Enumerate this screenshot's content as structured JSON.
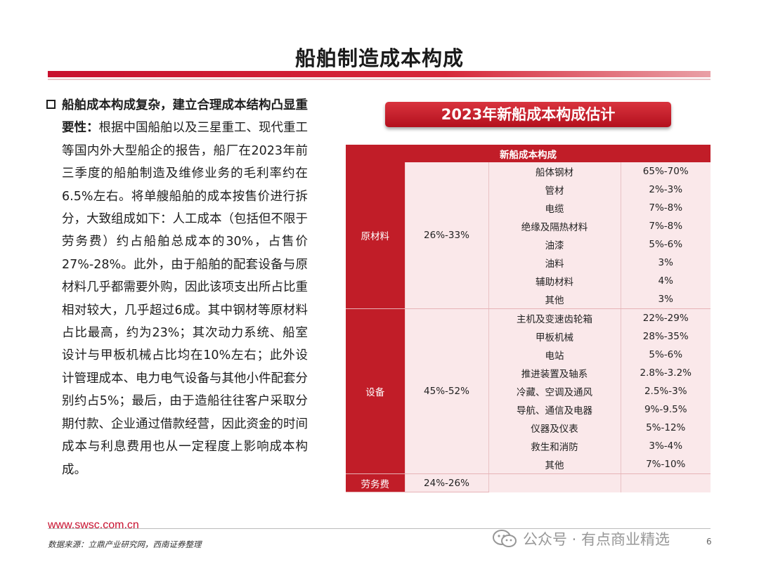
{
  "slide": {
    "title": "船舶制造成本构成",
    "page_number": "6"
  },
  "left": {
    "lead": "船舶成本构成复杂，建立合理成本结构凸显重要性：",
    "body": "根据中国船舶以及三星重工、现代重工等国内外大型船企的报告，船厂在2023年前三季度的船舶制造及维修业务的毛利率约在6.5%左右。将单艘船舶的成本按售价进行拆分，大致组成如下：人工成本（包括但不限于劳务费）约占船舶总成本的30%，占售价27%-28%。此外，由于船舶的配套设备与原材料几乎都需要外购，因此该项支出所占比重相对较大，几乎超过6成。其中钢材等原材料占比最高，约为23%；其次动力系统、船室设计与甲板机械占比均在10%左右；此外设计管理成本、电力电气设备与其他小件配套分别约占5%；最后，由于造船往往客户采取分期付款、企业通过借款经营，因此资金的时间成本与利息费用也从一定程度上影响成本构成。"
  },
  "chart": {
    "title": "2023年新船成本构成估计",
    "header": "新船成本构成",
    "groups": [
      {
        "category": "原材料",
        "share": "26%-33%",
        "items": [
          {
            "name": "船体钢材",
            "pct": "65%-70%"
          },
          {
            "name": "管材",
            "pct": "2%-3%"
          },
          {
            "name": "电缆",
            "pct": "7%-8%"
          },
          {
            "name": "绝缘及隔热材料",
            "pct": "7%-8%"
          },
          {
            "name": "油漆",
            "pct": "5%-6%"
          },
          {
            "name": "油料",
            "pct": "3%"
          },
          {
            "name": "辅助材料",
            "pct": "4%"
          },
          {
            "name": "其他",
            "pct": "3%"
          }
        ]
      },
      {
        "category": "设备",
        "share": "45%-52%",
        "items": [
          {
            "name": "主机及变速齿轮箱",
            "pct": "22%-29%"
          },
          {
            "name": "甲板机械",
            "pct": "28%-35%"
          },
          {
            "name": "电站",
            "pct": "5%-6%"
          },
          {
            "name": "推进装置及轴系",
            "pct": "2.8%-3.2%"
          },
          {
            "name": "冷藏、空调及通风",
            "pct": "2.5%-3%"
          },
          {
            "name": "导航、通信及电器",
            "pct": "9%-9.5%"
          },
          {
            "name": "仪器及仪表",
            "pct": "5%-12%"
          },
          {
            "name": "救生和消防",
            "pct": "3%-4%"
          },
          {
            "name": "其他",
            "pct": "7%-10%"
          }
        ]
      }
    ],
    "labor": {
      "category": "劳务费",
      "share": "24%-26%"
    }
  },
  "footer": {
    "website": "www.swsc.com.cn",
    "source": "数据来源：立鼎产业研究网，西南证券整理",
    "watermark": "公众号 · 有点商业精选"
  },
  "colors": {
    "accent": "#c8102e",
    "table_header": "#c11d28",
    "table_fill": "#fae8ea"
  }
}
